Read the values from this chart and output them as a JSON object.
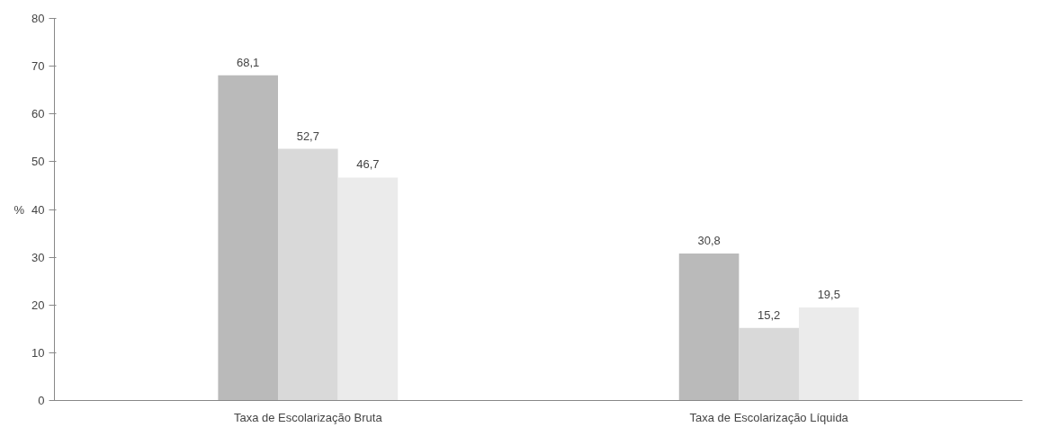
{
  "chart_data": {
    "type": "bar",
    "ylabel": "%",
    "categories": [
      "Taxa de Escolarização Bruta",
      "Taxa de Escolarização Líquida"
    ],
    "series": [
      {
        "color": "#bababa",
        "values": [
          68.1,
          30.8
        ],
        "value_labels": [
          "68,1",
          "30,8"
        ]
      },
      {
        "color": "#d9d9d9",
        "values": [
          52.7,
          15.2
        ],
        "value_labels": [
          "52,7",
          "15,2"
        ]
      },
      {
        "color": "#ebebeb",
        "values": [
          46.7,
          19.5
        ],
        "value_labels": [
          "46,7",
          "19,5"
        ]
      }
    ],
    "ylim": [
      0,
      80
    ],
    "yticks": [
      0,
      10,
      20,
      30,
      40,
      50,
      60,
      70,
      80
    ],
    "grid": false
  }
}
